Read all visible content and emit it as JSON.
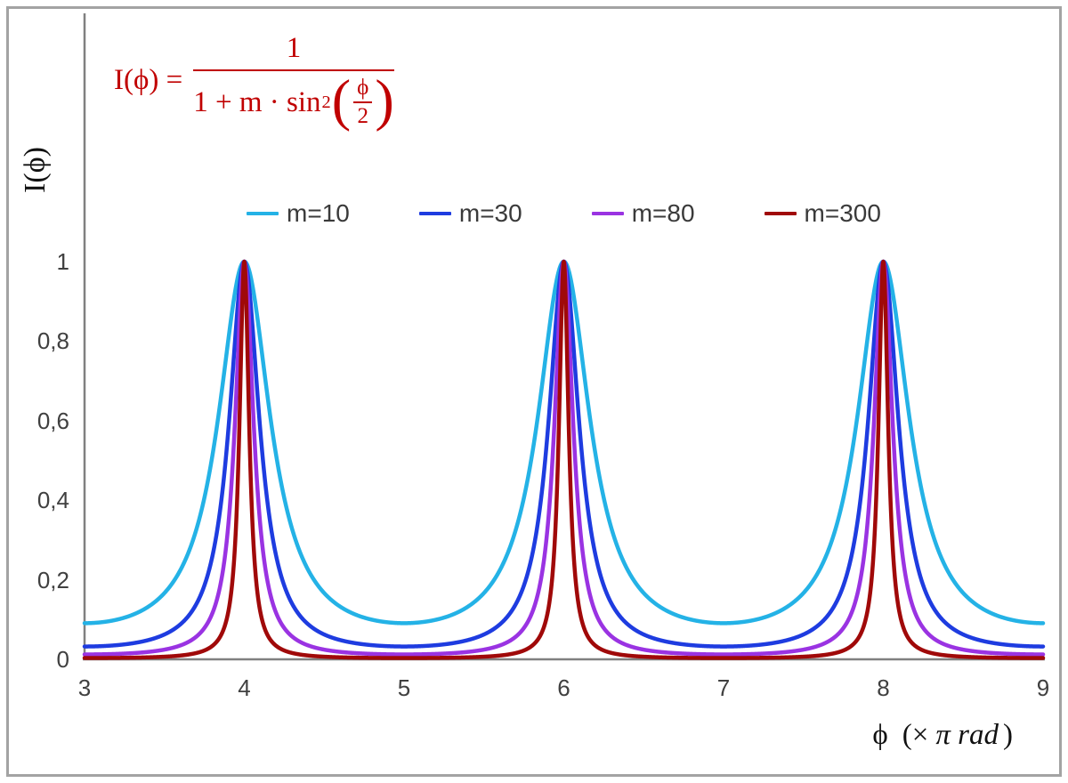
{
  "frame": {
    "border_color": "#a3a3a3"
  },
  "formula": {
    "color": "#c00000",
    "lhs": "I(ϕ) =",
    "numerator": "1",
    "denominator_prefix": "1 + m · sin",
    "exponent": "2",
    "open_paren": "(",
    "inner_numerator": "ϕ",
    "inner_denominator": "2",
    "close_paren": ")"
  },
  "axes": {
    "y_title": "I(ϕ)",
    "x_title_phi": "ϕ",
    "x_title_open": "(×",
    "x_title_unit": "π rad",
    "x_title_close": ")",
    "axis_color": "#808080"
  },
  "chart_data": {
    "type": "line",
    "title": "",
    "formula_text": "I(ϕ) = 1 / (1 + m · sin²(ϕ/2))",
    "function": "I(phi) = 1 / (1 + m * sin(phi_pi * PI / 2)^2), x axis value phi_pi is phi in units of pi rad",
    "xlabel": "ϕ (× π rad)",
    "ylabel": "I(ϕ)",
    "xlim": [
      3,
      9
    ],
    "ylim": [
      0,
      1.6
    ],
    "y_axis_labeled_max": 1,
    "grid": false,
    "legend_position": "top-center-horizontal",
    "x_ticks": [
      {
        "value": 3,
        "label": "3"
      },
      {
        "value": 4,
        "label": "4"
      },
      {
        "value": 5,
        "label": "5"
      },
      {
        "value": 6,
        "label": "6"
      },
      {
        "value": 7,
        "label": "7"
      },
      {
        "value": 8,
        "label": "8"
      },
      {
        "value": 9,
        "label": "9"
      }
    ],
    "y_ticks": [
      {
        "value": 0,
        "label": "0"
      },
      {
        "value": 0.2,
        "label": "0,2"
      },
      {
        "value": 0.4,
        "label": "0,4"
      },
      {
        "value": 0.6,
        "label": "0,6"
      },
      {
        "value": 0.8,
        "label": "0,8"
      },
      {
        "value": 1,
        "label": "1"
      }
    ],
    "series": [
      {
        "name": "m=10",
        "m": 10,
        "color": "#24b2e6"
      },
      {
        "name": "m=30",
        "m": 30,
        "color": "#1e3ce0"
      },
      {
        "name": "m=80",
        "m": 80,
        "color": "#9a33e2"
      },
      {
        "name": "m=300",
        "m": 300,
        "color": "#a00909"
      }
    ],
    "peak_x_values": [
      4,
      6,
      8
    ],
    "peak_y": 1,
    "sample_step": 0.002
  }
}
